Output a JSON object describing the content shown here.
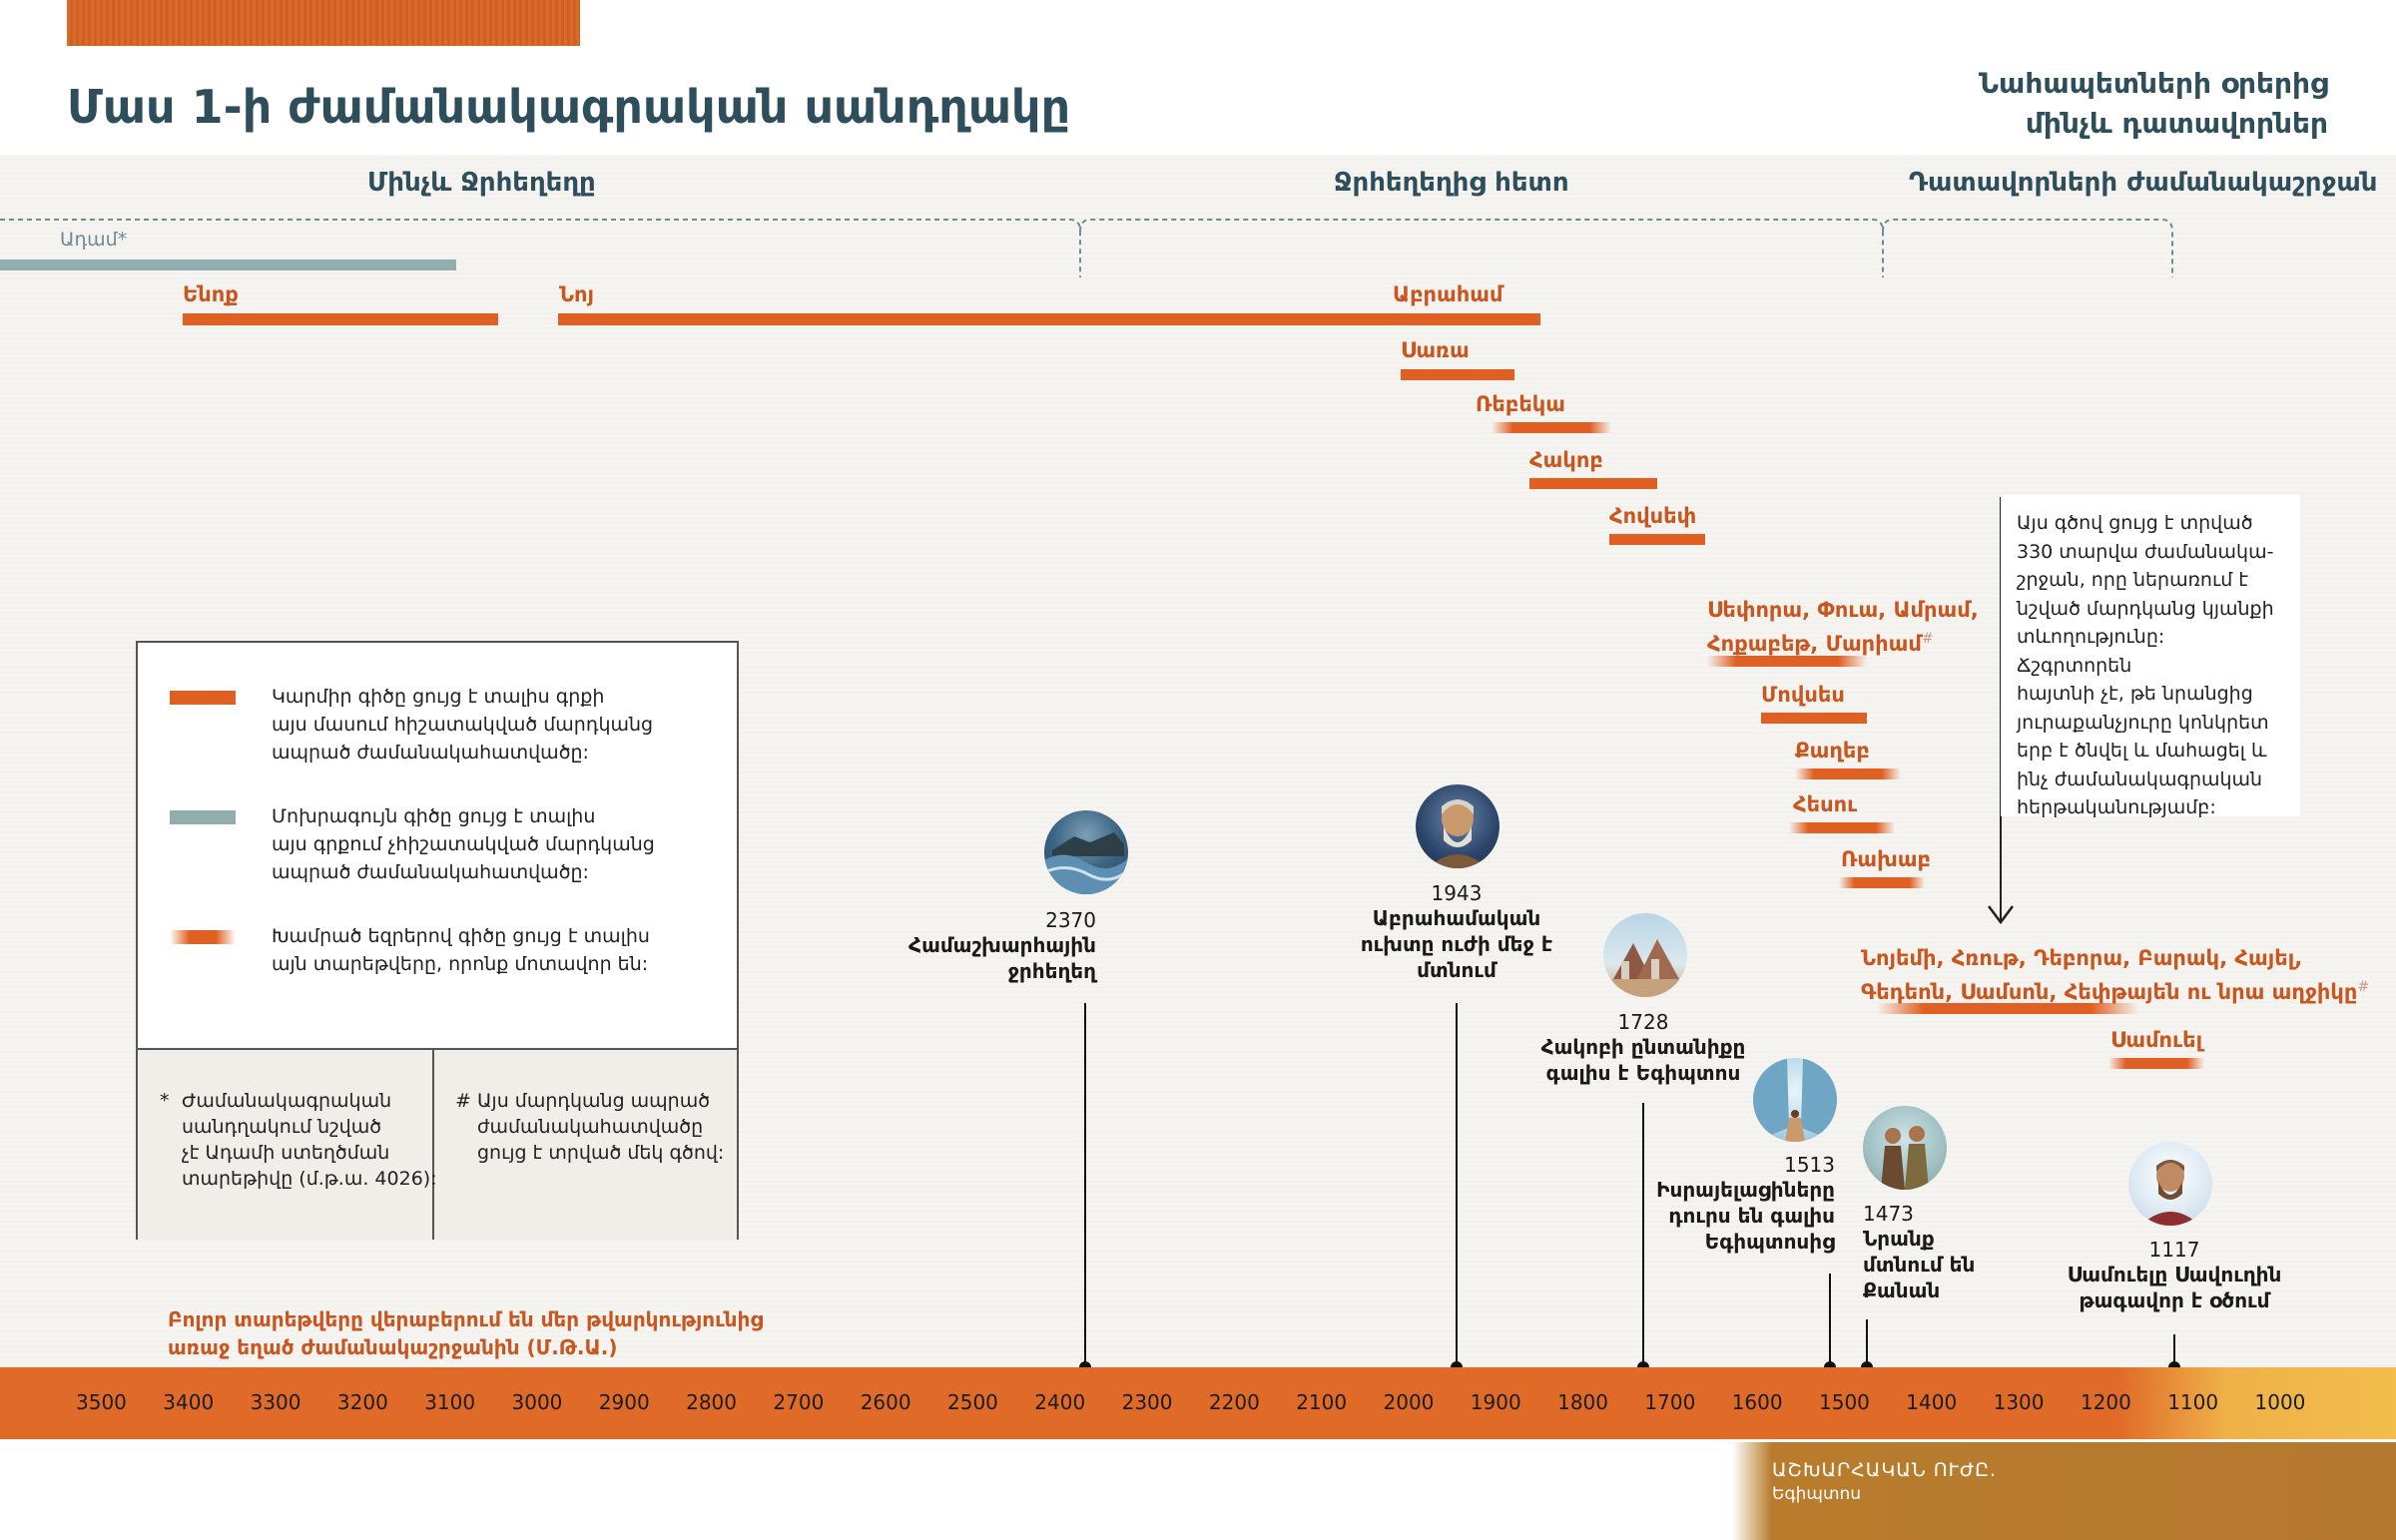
{
  "header": {
    "title": "Մաս 1-ի ժամանակագրական սանդղակը",
    "subtitle_line1": "Նահապետների օրերից",
    "subtitle_line2": "մինչև դատավորներ"
  },
  "eras": {
    "before_flood": "Մինչև Ջրհեղեղը",
    "after_flood": "Ջրհեղեղից հետո",
    "judges": "Դատավորների ժամանակաշրջան"
  },
  "people": {
    "adam": "Ադամ*",
    "enoch": "Ենոք",
    "noah": "Նոյ",
    "abraham": "Աբրահամ",
    "sarah": "Սառա",
    "rebekah": "Ռեբեկա",
    "jacob": "Հակոբ",
    "joseph": "Հովսեփ",
    "group1_line1": "Սեփորա, Փուա, Ամրամ,",
    "group1_line2": "Հոքաբեթ, Մարիամ",
    "group1_mark": "#",
    "moses": "Մովսես",
    "caleb": "Քաղեբ",
    "joshua": "Հեսու",
    "rahab": "Ռախաբ",
    "group2_line1": "Նոյեմի, Հռութ, Դեբորա, Բարակ, Հայել,",
    "group2_line2": "Գեդեոն, Սամսոն, Հեփթայեն ու նրա աղջիկը",
    "group2_mark": "#",
    "samuel": "Սամուել"
  },
  "events": [
    {
      "year": "2370",
      "line1": "Համաշխարհային",
      "line2": "ջրհեղեղ",
      "line3": ""
    },
    {
      "year": "1943",
      "line1": "Աբրահամական",
      "line2": "ուխտը ուժի մեջ է",
      "line3": "մտնում"
    },
    {
      "year": "1728",
      "line1": "Հակոբի ընտանիքը",
      "line2": "գալիս է Եգիպտոս",
      "line3": ""
    },
    {
      "year": "1513",
      "line1": "Իսրայելացիները",
      "line2": "դուրս են գալիս",
      "line3": "Եգիպտոսից"
    },
    {
      "year": "1473",
      "line1": "Նրանք",
      "line2": "մտնում են",
      "line3": "Քանան"
    },
    {
      "year": "1117",
      "line1": "Սամուելը Սավուղին",
      "line2": "թագավոր է օծում",
      "line3": ""
    }
  ],
  "legend": {
    "red_l1": "Կարմիր գիծը ցույց է տալիս գրքի",
    "red_l2": "այս մասում հիշատակված մարդկանց",
    "red_l3": "ապրած ժամանակահատվածը:",
    "grey_l1": "Մոխրագույն գիծը ցույց է տալիս",
    "grey_l2": "այս գրքում չհիշատակված մարդկանց",
    "grey_l3": "ապրած ժամանակահատվածը:",
    "fade_l1": "Խամրած եզրերով գիծը ցույց է տալիս",
    "fade_l2": "այն տարեթվերը, որոնք մոտավոր են:",
    "note1_mark": "*",
    "note1_l1": "Ժամանակագրական",
    "note1_l2": "սանդղակում նշված",
    "note1_l3": "չէ Ադամի ստեղծման",
    "note1_l4": "տարեթիվը (մ.թ.ա. 4026):",
    "note2_mark": "#",
    "note2_l1": "Այս մարդկանց ապրած",
    "note2_l2": "ժամանակահատվածը",
    "note2_l3": "ցույց է տրված մեկ գծով:",
    "red_color": "#e05f22",
    "grey_color": "#93acae"
  },
  "note": {
    "l1": "Այս գծով ցույց է տրված",
    "l2": "330 տարվա ժամանակա-",
    "l3": "շրջան, որը ներառում է",
    "l4": "նշված մարդկանց կյանքի",
    "l5": "տևողությունը: Ճշգրտորեն",
    "l6": "հայտնի չէ, թե նրանցից",
    "l7": "յուրաքանչյուրը կոնկրետ",
    "l8": "երբ է ծնվել և մահացել և",
    "l9": "ինչ ժամանակագրական",
    "l10": "հերթականությամբ:"
  },
  "bce_note": {
    "l1": "Բոլոր տարեթվերը վերաբերում են մեր թվարկությունից",
    "l2": "առաջ եղած ժամանակաշրջանին (Մ.Թ.Ա.)"
  },
  "axis": {
    "ticks": [
      "3500",
      "3400",
      "3300",
      "3200",
      "3100",
      "3000",
      "2900",
      "2800",
      "2700",
      "2600",
      "2500",
      "2400",
      "2300",
      "2200",
      "2100",
      "2000",
      "1900",
      "1800",
      "1700",
      "1600",
      "1500",
      "1400",
      "1300",
      "1200",
      "1100",
      "1000"
    ]
  },
  "footer": {
    "line1": "ԱՇԽԱՐՀԱԿԱՆ ՈՒԺԸ.",
    "line2": "Եգիպտոս"
  },
  "icons": {
    "flood": "flood-icon",
    "abraham": "abraham-portrait-icon",
    "egypt": "egypt-pyramids-icon",
    "red_sea": "red-sea-crossing-icon",
    "canaan": "spies-icon",
    "samuel": "samuel-portrait-icon"
  }
}
